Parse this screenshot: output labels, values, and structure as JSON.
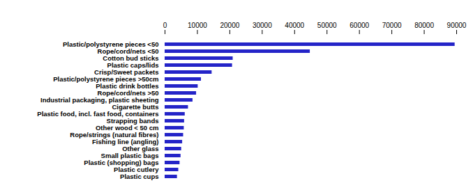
{
  "chart_data": {
    "type": "bar",
    "orientation": "horizontal",
    "categories": [
      "Plastic/polystyrene pieces <50",
      "Rope/cord/nets <50",
      "Cotton bud sticks",
      "Plastic caps/lids",
      "Crisp/Sweet packets",
      "Plastic/polystyrene pieces >50cm",
      "Plastic drink bottles",
      "Rope/cord/nets >50",
      "Industrial packaging, plastic sheeting",
      "Cigarette butts",
      "Plastic food, incl. fast food, containers",
      "Strapping bands",
      "Other wood < 50 cm",
      "Rope/strings (natural fibres)",
      "Fishing line (angling)",
      "Other glass",
      "Small plastic bags",
      "Plastic (shopping) bags",
      "Plastic cutlery",
      "Plastic cups"
    ],
    "values": [
      89500,
      44800,
      21000,
      20800,
      14500,
      11200,
      10200,
      9700,
      8600,
      7200,
      6200,
      6000,
      5900,
      5700,
      5400,
      5100,
      4900,
      4600,
      4200,
      3800
    ],
    "color": "#2424c8",
    "xlim": [
      0,
      90000
    ],
    "xticks": [
      0,
      10000,
      20000,
      30000,
      40000,
      50000,
      60000,
      70000,
      80000,
      90000
    ],
    "grid": false
  }
}
